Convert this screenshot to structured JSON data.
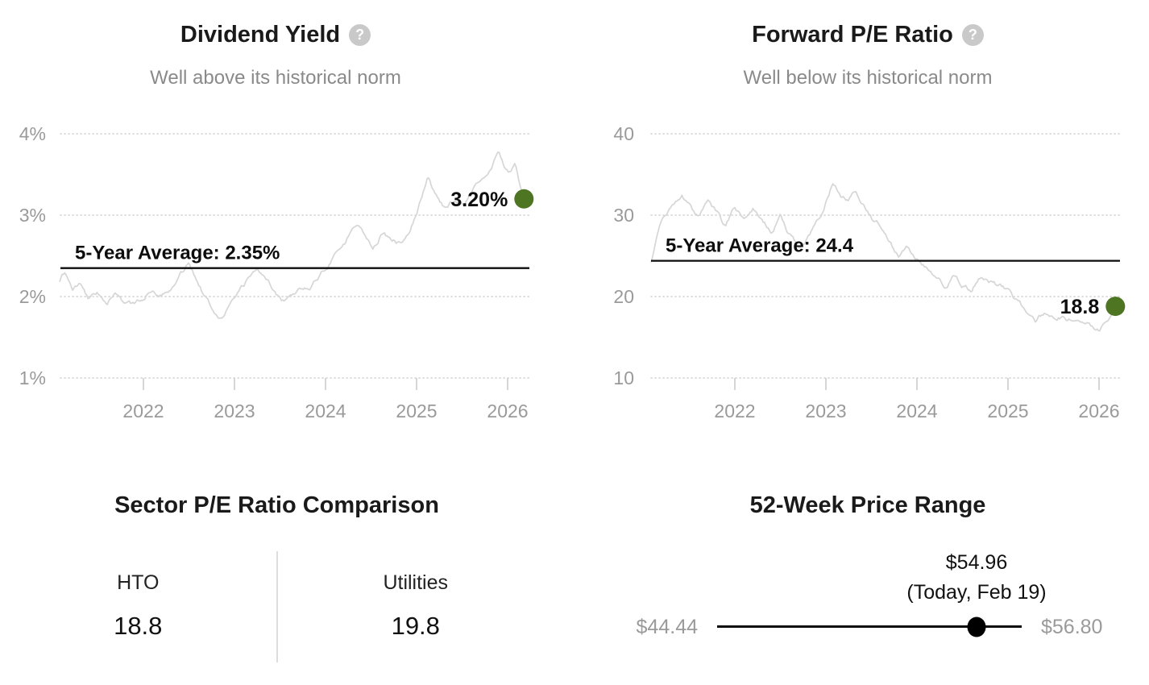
{
  "accent_color": "#4e7622",
  "muted_color": "#9a9a9a",
  "icons": {
    "help_glyph": "?"
  },
  "chart_data": [
    {
      "type": "line",
      "title": "Dividend Yield",
      "subtitle": "Well above its historical norm",
      "x_tick_labels": [
        "2022",
        "2023",
        "2024",
        "2025",
        "2026"
      ],
      "x_tick_values": [
        2022,
        2023,
        2024,
        2025,
        2026
      ],
      "y_tick_labels": [
        "4%",
        "3%",
        "2%",
        "1%"
      ],
      "y_tick_values": [
        4,
        3,
        2,
        1
      ],
      "xlim": [
        2021.08,
        2026.3
      ],
      "ylim": [
        1,
        4
      ],
      "grid": "dotted-horizontal",
      "average_label": "5-Year Average: 2.35%",
      "average_value": 2.35,
      "current_label": "3.20%",
      "current_value": 3.2,
      "current_x": 2026.18,
      "series": [
        {
          "name": "Dividend Yield",
          "points": [
            [
              2021.08,
              2.18
            ],
            [
              2021.14,
              2.3
            ],
            [
              2021.22,
              2.08
            ],
            [
              2021.3,
              2.15
            ],
            [
              2021.4,
              1.97
            ],
            [
              2021.5,
              2.03
            ],
            [
              2021.6,
              1.95
            ],
            [
              2021.7,
              2.01
            ],
            [
              2021.8,
              1.93
            ],
            [
              2021.9,
              1.9
            ],
            [
              2022.0,
              1.98
            ],
            [
              2022.1,
              2.12
            ],
            [
              2022.2,
              2.03
            ],
            [
              2022.3,
              2.12
            ],
            [
              2022.42,
              2.28
            ],
            [
              2022.5,
              2.42
            ],
            [
              2022.58,
              2.25
            ],
            [
              2022.66,
              2.05
            ],
            [
              2022.76,
              1.86
            ],
            [
              2022.86,
              1.75
            ],
            [
              2022.95,
              1.92
            ],
            [
              2023.05,
              2.02
            ],
            [
              2023.15,
              2.2
            ],
            [
              2023.25,
              2.36
            ],
            [
              2023.35,
              2.22
            ],
            [
              2023.45,
              2.06
            ],
            [
              2023.52,
              1.96
            ],
            [
              2023.62,
              2.02
            ],
            [
              2023.72,
              2.14
            ],
            [
              2023.82,
              2.1
            ],
            [
              2023.92,
              2.24
            ],
            [
              2024.02,
              2.38
            ],
            [
              2024.12,
              2.58
            ],
            [
              2024.22,
              2.68
            ],
            [
              2024.32,
              2.9
            ],
            [
              2024.42,
              2.8
            ],
            [
              2024.52,
              2.62
            ],
            [
              2024.62,
              2.78
            ],
            [
              2024.72,
              2.7
            ],
            [
              2024.82,
              2.64
            ],
            [
              2024.92,
              2.76
            ],
            [
              2025.02,
              3.08
            ],
            [
              2025.12,
              3.47
            ],
            [
              2025.22,
              3.22
            ],
            [
              2025.32,
              3.06
            ],
            [
              2025.42,
              3.18
            ],
            [
              2025.52,
              3.12
            ],
            [
              2025.62,
              3.3
            ],
            [
              2025.72,
              3.48
            ],
            [
              2025.82,
              3.58
            ],
            [
              2025.9,
              3.8
            ],
            [
              2025.97,
              3.58
            ],
            [
              2026.03,
              3.52
            ],
            [
              2026.08,
              3.65
            ],
            [
              2026.13,
              3.4
            ],
            [
              2026.18,
              3.2
            ]
          ]
        }
      ]
    },
    {
      "type": "line",
      "title": "Forward P/E Ratio",
      "subtitle": "Well below its historical norm",
      "x_tick_labels": [
        "2022",
        "2023",
        "2024",
        "2025",
        "2026"
      ],
      "x_tick_values": [
        2022,
        2023,
        2024,
        2025,
        2026
      ],
      "y_tick_labels": [
        "40",
        "30",
        "20",
        "10"
      ],
      "y_tick_values": [
        40,
        30,
        20,
        10
      ],
      "xlim": [
        2021.08,
        2026.3
      ],
      "ylim": [
        10,
        40
      ],
      "grid": "dotted-horizontal",
      "average_label": "5-Year Average: 24.4",
      "average_value": 24.4,
      "current_label": "18.8",
      "current_value": 18.8,
      "current_x": 2026.18,
      "series": [
        {
          "name": "Forward P/E Ratio",
          "points": [
            [
              2021.08,
              24.2
            ],
            [
              2021.14,
              26.8
            ],
            [
              2021.22,
              29.6
            ],
            [
              2021.32,
              31.2
            ],
            [
              2021.42,
              32.2
            ],
            [
              2021.52,
              30.6
            ],
            [
              2021.6,
              29.6
            ],
            [
              2021.7,
              31.4
            ],
            [
              2021.8,
              30.2
            ],
            [
              2021.9,
              28.6
            ],
            [
              2022.0,
              30.9
            ],
            [
              2022.1,
              29.9
            ],
            [
              2022.2,
              31.1
            ],
            [
              2022.3,
              29.1
            ],
            [
              2022.42,
              27.9
            ],
            [
              2022.5,
              29.9
            ],
            [
              2022.6,
              27.6
            ],
            [
              2022.7,
              26.3
            ],
            [
              2022.8,
              27.1
            ],
            [
              2022.9,
              28.9
            ],
            [
              2023.0,
              31.6
            ],
            [
              2023.08,
              34.0
            ],
            [
              2023.16,
              32.6
            ],
            [
              2023.24,
              31.9
            ],
            [
              2023.32,
              33.2
            ],
            [
              2023.42,
              31.1
            ],
            [
              2023.5,
              29.6
            ],
            [
              2023.6,
              28.9
            ],
            [
              2023.7,
              26.6
            ],
            [
              2023.8,
              24.9
            ],
            [
              2023.9,
              26.1
            ],
            [
              2024.0,
              24.7
            ],
            [
              2024.1,
              23.3
            ],
            [
              2024.2,
              22.1
            ],
            [
              2024.3,
              21.3
            ],
            [
              2024.4,
              22.4
            ],
            [
              2024.5,
              21.4
            ],
            [
              2024.6,
              20.9
            ],
            [
              2024.7,
              22.5
            ],
            [
              2024.8,
              21.9
            ],
            [
              2024.9,
              21.3
            ],
            [
              2025.0,
              20.9
            ],
            [
              2025.1,
              19.5
            ],
            [
              2025.2,
              18.3
            ],
            [
              2025.3,
              16.7
            ],
            [
              2025.4,
              17.9
            ],
            [
              2025.5,
              17.3
            ],
            [
              2025.6,
              17.7
            ],
            [
              2025.7,
              17.1
            ],
            [
              2025.8,
              16.7
            ],
            [
              2025.9,
              16.4
            ],
            [
              2026.0,
              15.9
            ],
            [
              2026.06,
              16.4
            ],
            [
              2026.12,
              17.4
            ],
            [
              2026.18,
              18.8
            ]
          ]
        }
      ]
    }
  ],
  "sector_comparison": {
    "title": "Sector P/E Ratio Comparison",
    "columns": [
      {
        "label": "HTO",
        "value": "18.8"
      },
      {
        "label": "Utilities",
        "value": "19.8"
      }
    ]
  },
  "price_range": {
    "title": "52-Week Price Range",
    "low_label": "$44.44",
    "high_label": "$56.80",
    "current_label": "$54.96",
    "current_note": "(Today, Feb 19)",
    "low_value": 44.44,
    "high_value": 56.8,
    "current_value": 54.96
  }
}
